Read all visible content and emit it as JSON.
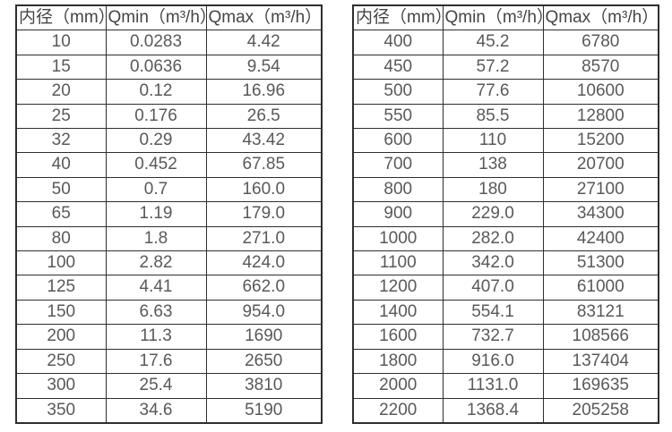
{
  "page": {
    "background_color": "#ffffff",
    "border_color": "#2e2e2e",
    "header_text_color": "#454545",
    "cell_text_color": "#595959"
  },
  "tables": [
    {
      "name": "flow-rate-table-small-diameters",
      "columns": [
        "内径（mm）",
        "Qmin（m³/h）",
        "Qmax（m³/h）"
      ],
      "rows": [
        [
          "10",
          "0.0283",
          "4.42"
        ],
        [
          "15",
          "0.0636",
          "9.54"
        ],
        [
          "20",
          "0.12",
          "16.96"
        ],
        [
          "25",
          "0.176",
          "26.5"
        ],
        [
          "32",
          "0.29",
          "43.42"
        ],
        [
          "40",
          "0.452",
          "67.85"
        ],
        [
          "50",
          "0.7",
          "160.0"
        ],
        [
          "65",
          "1.19",
          "179.0"
        ],
        [
          "80",
          "1.8",
          "271.0"
        ],
        [
          "100",
          "2.82",
          "424.0"
        ],
        [
          "125",
          "4.41",
          "662.0"
        ],
        [
          "150",
          "6.63",
          "954.0"
        ],
        [
          "200",
          "11.3",
          "1690"
        ],
        [
          "250",
          "17.6",
          "2650"
        ],
        [
          "300",
          "25.4",
          "3810"
        ],
        [
          "350",
          "34.6",
          "5190"
        ]
      ]
    },
    {
      "name": "flow-rate-table-large-diameters",
      "columns": [
        "内径（mm）",
        "Qmin（m³/h）",
        "Qmax（m³/h）"
      ],
      "rows": [
        [
          "400",
          "45.2",
          "6780"
        ],
        [
          "450",
          "57.2",
          "8570"
        ],
        [
          "500",
          "77.6",
          "10600"
        ],
        [
          "550",
          "85.5",
          "12800"
        ],
        [
          "600",
          "110",
          "15200"
        ],
        [
          "700",
          "138",
          "20700"
        ],
        [
          "800",
          "180",
          "27100"
        ],
        [
          "900",
          "229.0",
          "34300"
        ],
        [
          "1000",
          "282.0",
          "42400"
        ],
        [
          "1100",
          "342.0",
          "51300"
        ],
        [
          "1200",
          "407.0",
          "61000"
        ],
        [
          "1400",
          "554.1",
          "83121"
        ],
        [
          "1600",
          "732.7",
          "108566"
        ],
        [
          "1800",
          "916.0",
          "137404"
        ],
        [
          "2000",
          "1131.0",
          "169635"
        ],
        [
          "2200",
          "1368.4",
          "205258"
        ]
      ]
    }
  ]
}
